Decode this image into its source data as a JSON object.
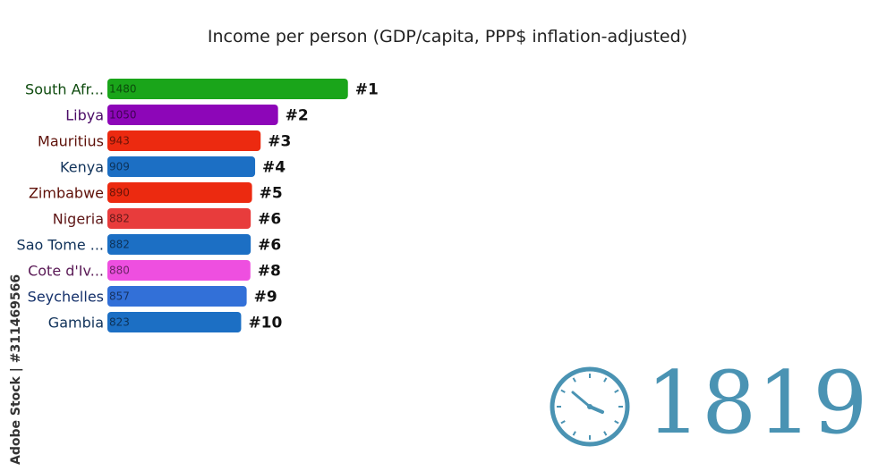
{
  "chart_data": {
    "type": "bar",
    "orientation": "horizontal",
    "title": "Income per person (GDP/capita, PPP$ inflation-adjusted)",
    "categories": [
      "South Afr...",
      "Libya",
      "Mauritius",
      "Kenya",
      "Zimbabwe",
      "Nigeria",
      "Sao Tome ...",
      "Cote d'Iv...",
      "Seychelles",
      "Gambia"
    ],
    "values": [
      1480,
      1050,
      943,
      909,
      890,
      882,
      882,
      880,
      857,
      823
    ],
    "value_labels": [
      "1480",
      "1050",
      "943",
      "909",
      "890",
      "882",
      "882",
      "880",
      "857",
      "823"
    ],
    "ranks": [
      "#1",
      "#2",
      "#3",
      "#4",
      "#5",
      "#6",
      "#6",
      "#8",
      "#9",
      "#10"
    ],
    "colors": [
      "#1aa51a",
      "#8d06b8",
      "#ec2a10",
      "#1c6fc4",
      "#ec2a10",
      "#e83c3c",
      "#1c6fc4",
      "#ee4fe0",
      "#3270d8",
      "#1c6fc4"
    ],
    "label_colors": [
      "#0d4a0d",
      "#4a0a66",
      "#5e1008",
      "#10325a",
      "#5e1008",
      "#5e1616",
      "#10325a",
      "#5a1a56",
      "#14306a",
      "#10325a"
    ],
    "xlim": [
      0,
      1520
    ],
    "grid": false,
    "legend": "none"
  },
  "year": "1819",
  "clock_icon": "clock-icon",
  "watermark_id": "Adobe Stock | #311469566"
}
